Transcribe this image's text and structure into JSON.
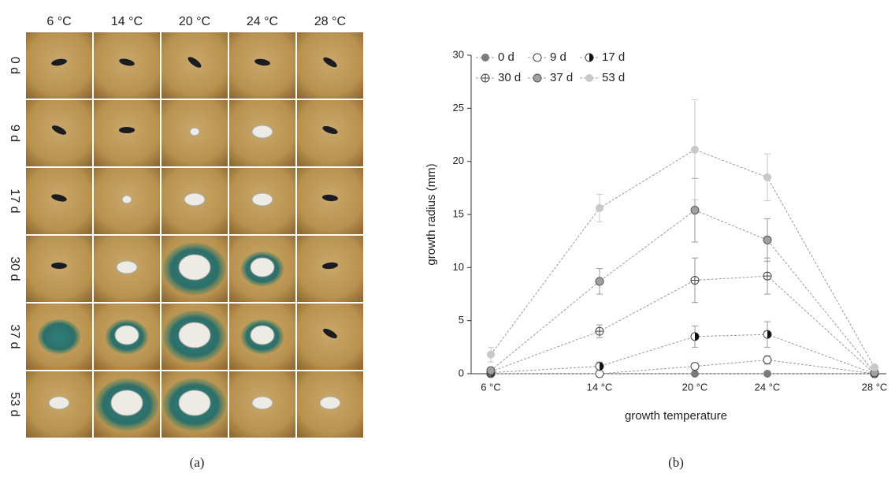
{
  "panel_a": {
    "columns": [
      "6 °C",
      "14 °C",
      "20 °C",
      "24 °C",
      "28 °C"
    ],
    "rows": [
      "0 d",
      "9 d",
      "17 d",
      "30 d",
      "37 d",
      "53 d"
    ]
  },
  "panel_labels": [
    "(a)",
    "(b)"
  ],
  "chart_data": {
    "type": "line",
    "x_label": "growth temperature",
    "y_label": "growth radius (mm)",
    "categories": [
      "6 °C",
      "14 °C",
      "20 °C",
      "24 °C",
      "28 °C"
    ],
    "ylim": [
      0,
      30
    ],
    "yticks": [
      0,
      5,
      10,
      15,
      20,
      25,
      30
    ],
    "grid": false,
    "line_style": "dashed",
    "line_color": "#9a9a9a",
    "series": [
      {
        "name": "0 d",
        "color": "#7a7a7a",
        "marker": "filled",
        "values": [
          0,
          0,
          0,
          0,
          0
        ],
        "errors": [
          0,
          0,
          0,
          0,
          0
        ]
      },
      {
        "name": "9 d",
        "color": "#ffffff",
        "marker": "open",
        "values": [
          0,
          0,
          0.7,
          1.3,
          0
        ],
        "errors": [
          0,
          0,
          0.3,
          0.4,
          0
        ]
      },
      {
        "name": "17 d",
        "color": "#111111",
        "marker": "half",
        "values": [
          0.1,
          0.7,
          3.5,
          3.7,
          0
        ],
        "errors": [
          0,
          0.4,
          1.0,
          1.2,
          0
        ]
      },
      {
        "name": "30 d",
        "color": "#ffffff",
        "marker": "cross",
        "values": [
          0.2,
          4.0,
          8.8,
          9.2,
          0
        ],
        "errors": [
          0,
          0.6,
          2.1,
          1.7,
          0
        ]
      },
      {
        "name": "37 d",
        "color": "#a0a0a0",
        "marker": "filled-edge",
        "values": [
          0.3,
          8.7,
          15.4,
          12.6,
          0.1
        ],
        "errors": [
          0.2,
          1.2,
          3.0,
          2.0,
          0
        ]
      },
      {
        "name": "53 d",
        "color": "#c8c8c8",
        "marker": "filled",
        "values": [
          1.8,
          15.6,
          21.1,
          18.5,
          0.6
        ],
        "errors": [
          0.7,
          1.3,
          4.7,
          2.2,
          0.2
        ]
      }
    ]
  }
}
